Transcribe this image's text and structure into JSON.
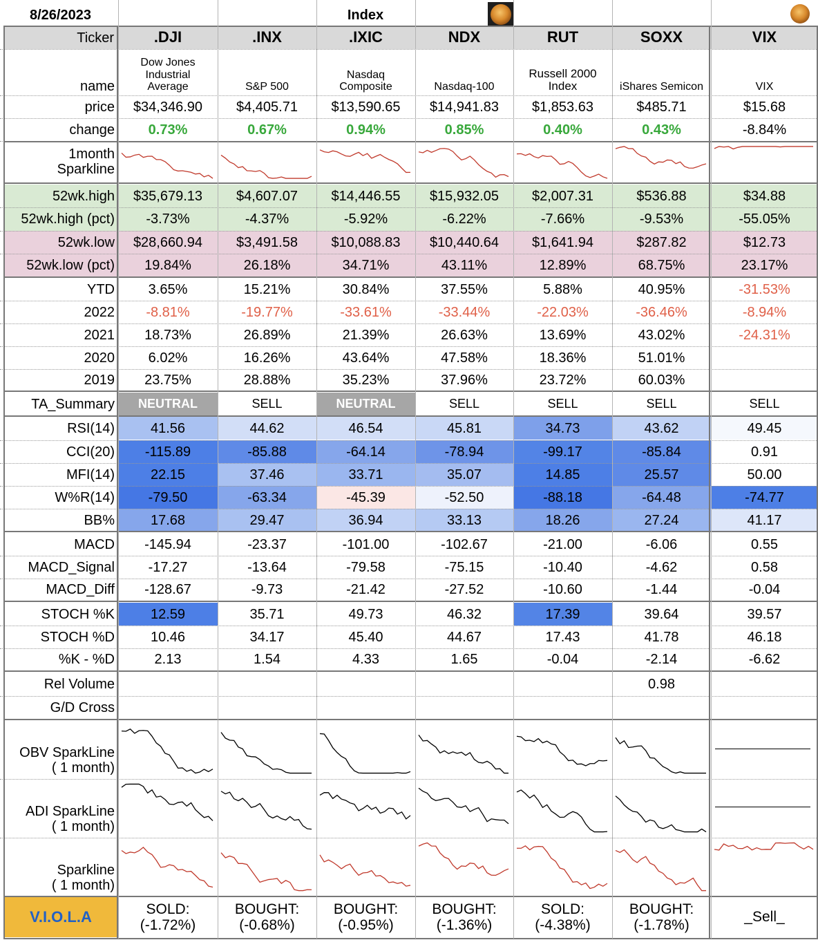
{
  "header": {
    "date": "8/26/2023",
    "group_title": "Index"
  },
  "ticker_label": "Ticker",
  "tickers": [
    ".DJI",
    ".INX",
    ".IXIC",
    "NDX",
    "RUT",
    "SOXX",
    "VIX"
  ],
  "row_labels": {
    "name": "name",
    "price": "price",
    "change": "change",
    "sparkline_1": "1month",
    "sparkline_2": "Sparkline",
    "high52": "52wk.high",
    "high52pct": "52wk.high (pct)",
    "low52": "52wk.low",
    "low52pct": "52wk.low (pct)",
    "ytd": "YTD",
    "y2022": "2022",
    "y2021": "2021",
    "y2020": "2020",
    "y2019": "2019",
    "ta_summary": "TA_Summary",
    "rsi": "RSI(14)",
    "cci": "CCI(20)",
    "mfi": "MFI(14)",
    "wr": "W%R(14)",
    "bb": "BB%",
    "macd": "MACD",
    "macd_signal": "MACD_Signal",
    "macd_diff": "MACD_Diff",
    "stoch_k": "STOCH %K",
    "stoch_d": "STOCH %D",
    "k_minus_d": "%K - %D",
    "rel_volume": "Rel Volume",
    "gd_cross": "G/D Cross",
    "obv_1": "OBV SparkLine",
    "obv_2": "( 1 month)",
    "adi_1": "ADI SparkLine",
    "adi_2": "( 1 month)",
    "spark_1": "Sparkline",
    "spark_2": "( 1 month)",
    "viola": "V.I.O.L.A"
  },
  "names": [
    [
      "Dow Jones",
      "Industrial",
      "Average"
    ],
    [
      "S&P 500"
    ],
    [
      "Nasdaq",
      "Composite"
    ],
    [
      "Nasdaq-100"
    ],
    [
      "Russell 2000",
      "Index"
    ],
    [
      "iShares Semicon"
    ],
    [
      "VIX"
    ]
  ],
  "price": [
    "$34,346.90",
    "$4,405.71",
    "$13,590.65",
    "$14,941.83",
    "$1,853.63",
    "$485.71",
    "$15.68"
  ],
  "change": [
    "0.73%",
    "0.67%",
    "0.94%",
    "0.85%",
    "0.40%",
    "0.43%",
    "-8.84%"
  ],
  "high52": [
    "$35,679.13",
    "$4,607.07",
    "$14,446.55",
    "$15,932.05",
    "$2,007.31",
    "$536.88",
    "$34.88"
  ],
  "high52pct": [
    "-3.73%",
    "-4.37%",
    "-5.92%",
    "-6.22%",
    "-7.66%",
    "-9.53%",
    "-55.05%"
  ],
  "low52": [
    "$28,660.94",
    "$3,491.58",
    "$10,088.83",
    "$10,440.64",
    "$1,641.94",
    "$287.82",
    "$12.73"
  ],
  "low52pct": [
    "19.84%",
    "26.18%",
    "34.71%",
    "43.11%",
    "12.89%",
    "68.75%",
    "23.17%"
  ],
  "ytd": [
    "3.65%",
    "15.21%",
    "30.84%",
    "37.55%",
    "5.88%",
    "40.95%",
    "-31.53%"
  ],
  "y2022": [
    "-8.81%",
    "-19.77%",
    "-33.61%",
    "-33.44%",
    "-22.03%",
    "-36.46%",
    "-8.94%"
  ],
  "y2021": [
    "18.73%",
    "26.89%",
    "21.39%",
    "26.63%",
    "13.69%",
    "43.02%",
    "-24.31%"
  ],
  "y2020": [
    "6.02%",
    "16.26%",
    "43.64%",
    "47.58%",
    "18.36%",
    "51.01%",
    ""
  ],
  "y2019": [
    "23.75%",
    "28.88%",
    "35.23%",
    "37.96%",
    "23.72%",
    "60.03%",
    ""
  ],
  "ta_summary": [
    "NEUTRAL",
    "SELL",
    "NEUTRAL",
    "SELL",
    "SELL",
    "SELL",
    "SELL"
  ],
  "rsi": [
    "41.56",
    "44.62",
    "46.54",
    "45.81",
    "34.73",
    "43.62",
    "49.45"
  ],
  "cci": [
    "-115.89",
    "-85.88",
    "-64.14",
    "-78.94",
    "-99.17",
    "-85.84",
    "0.91"
  ],
  "mfi": [
    "22.15",
    "37.46",
    "33.71",
    "35.07",
    "14.85",
    "25.57",
    "50.00"
  ],
  "wr": [
    "-79.50",
    "-63.34",
    "-45.39",
    "-52.50",
    "-88.18",
    "-64.48",
    "-74.77"
  ],
  "bb": [
    "17.68",
    "29.47",
    "36.94",
    "33.13",
    "18.26",
    "27.24",
    "41.17"
  ],
  "heat_colors": {
    "rsi": [
      "#a9c1f1",
      "#d2def7",
      "#d2def7",
      "#c9d8f6",
      "#7ea0ea",
      "#c1d2f5",
      "#f5f8fd"
    ],
    "cci": [
      "#4d7fe6",
      "#5f8ae7",
      "#86a6eb",
      "#6e94e8",
      "#5384e6",
      "#5f8ae7",
      "#ffffff"
    ],
    "mfi": [
      "#4d7fe6",
      "#a9c1f1",
      "#9ab6ef",
      "#a4bcf0",
      "#4d7fe6",
      "#5f8ae7",
      "#ffffff"
    ],
    "wr": [
      "#4577e4",
      "#86a6eb",
      "#fbe7e5",
      "#eef2fc",
      "#4577e4",
      "#86a6eb",
      "#4d7fe6"
    ],
    "bb": [
      "#86a6eb",
      "#a9c1f1",
      "#c1d2f5",
      "#b5caf3",
      "#86a6eb",
      "#9ab6ef",
      "#dde6f9"
    ],
    "stoch_k": [
      "#4d7fe6",
      "#ffffff",
      "#ffffff",
      "#ffffff",
      "#5384e6",
      "#ffffff",
      "#ffffff"
    ],
    "positive_change": "#38a83b",
    "negative_return": "#e06048",
    "neutral_badge": "#a6a6a6",
    "viola_badge": "#f0b93b",
    "viola_text": "#2161c6",
    "sparkline_price": "#c0392b",
    "sparkline_volume": "#000000"
  },
  "macd": [
    "-145.94",
    "-23.37",
    "-101.00",
    "-102.67",
    "-21.00",
    "-6.06",
    "0.55"
  ],
  "macd_signal": [
    "-17.27",
    "-13.64",
    "-79.58",
    "-75.15",
    "-10.40",
    "-4.62",
    "0.58"
  ],
  "macd_diff": [
    "-128.67",
    "-9.73",
    "-21.42",
    "-27.52",
    "-10.60",
    "-1.44",
    "-0.04"
  ],
  "stoch_k": [
    "12.59",
    "35.71",
    "49.73",
    "46.32",
    "17.39",
    "39.64",
    "39.57"
  ],
  "stoch_d": [
    "10.46",
    "34.17",
    "45.40",
    "44.67",
    "17.43",
    "41.78",
    "46.18"
  ],
  "k_minus_d": [
    "2.13",
    "1.54",
    "4.33",
    "1.65",
    "-0.04",
    "-2.14",
    "-6.62"
  ],
  "rel_volume": [
    "",
    "",
    "",
    "",
    "",
    "0.98",
    ""
  ],
  "gd_cross": [
    "",
    "",
    "",
    "",
    "",
    "",
    ""
  ],
  "viola": [
    [
      "SOLD:",
      "(-1.72%)"
    ],
    [
      "BOUGHT:",
      "(-0.68%)"
    ],
    [
      "BOUGHT:",
      "(-0.95%)"
    ],
    [
      "BOUGHT:",
      "(-1.36%)"
    ],
    [
      "SOLD:",
      "(-4.38%)"
    ],
    [
      "BOUGHT:",
      "(-1.78%)"
    ],
    [
      "_Sell_"
    ]
  ],
  "icons": [
    "coin-icon",
    "coin-icon"
  ]
}
